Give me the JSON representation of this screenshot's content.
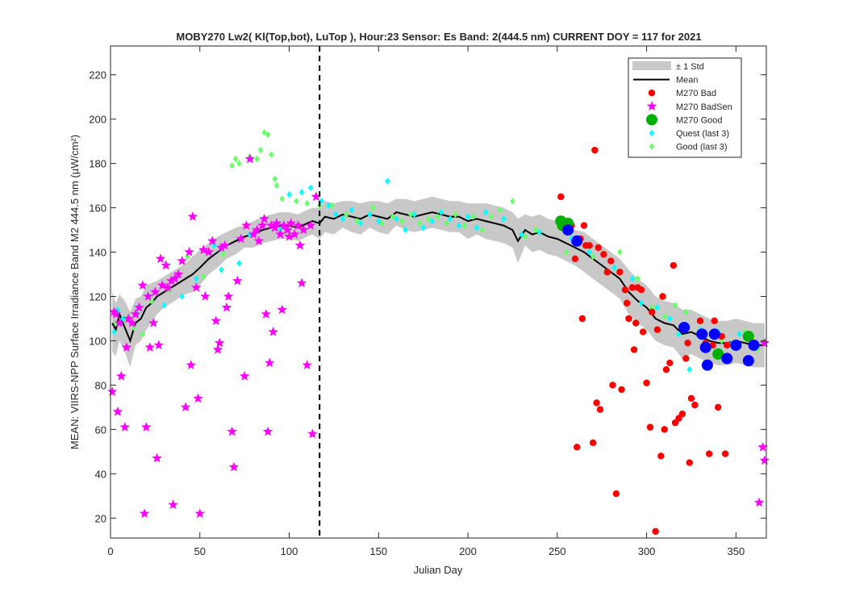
{
  "chart_data": {
    "type": "scatter",
    "title": "MOBY270   Lw2( Kl(Top,bot), LuTop ),   Hour:23 Sensor: Es Band: 2(444.5 nm)   CURRENT DOY = 117 for 2021",
    "xlabel": "Julian Day",
    "ylabel": "MEAN: VIIRS-NPP Surface Irradiance Band M2 444.5 nm (µW/cm²)",
    "xlim": [
      0,
      367
    ],
    "ylim": [
      11,
      233
    ],
    "xticks": [
      0,
      50,
      100,
      150,
      200,
      250,
      300,
      350
    ],
    "yticks": [
      20,
      40,
      60,
      80,
      100,
      120,
      140,
      160,
      180,
      200,
      220
    ],
    "grid": false,
    "legend_position": "top-right",
    "current_doy": 117,
    "colors": {
      "std_band": "#c8c8c8",
      "mean": "#000000",
      "bad": "#ff0000",
      "badsen": "#ff00ff",
      "good": "#00b000",
      "quest": "#00ffff",
      "goodlast3": "#66ff66",
      "blue": "#0000ff"
    },
    "legend": [
      {
        "key": "std",
        "label": "± 1 Std"
      },
      {
        "key": "mean",
        "label": "Mean"
      },
      {
        "key": "bad",
        "label": "M270 Bad"
      },
      {
        "key": "badsen",
        "label": "M270 BadSen"
      },
      {
        "key": "good",
        "label": "M270 Good"
      },
      {
        "key": "quest",
        "label": "Quest (last 3)"
      },
      {
        "key": "goodlast3",
        "label": "Good (last 3)"
      }
    ],
    "mean_x": [
      1,
      3,
      5,
      8,
      11,
      14,
      17,
      20,
      23,
      26,
      30,
      34,
      38,
      42,
      46,
      50,
      55,
      60,
      65,
      70,
      75,
      80,
      85,
      90,
      95,
      100,
      105,
      110,
      113,
      117,
      120,
      125,
      130,
      135,
      140,
      145,
      150,
      155,
      160,
      165,
      170,
      175,
      180,
      185,
      190,
      195,
      200,
      205,
      210,
      215,
      220,
      225,
      228,
      232,
      236,
      240,
      245,
      250,
      255,
      260,
      265,
      270,
      275,
      280,
      285,
      290,
      295,
      300,
      305,
      310,
      315,
      320,
      325,
      330,
      335,
      340,
      345,
      350,
      355,
      360,
      366
    ],
    "mean_y": [
      108,
      105,
      112,
      106,
      100,
      108,
      110,
      115,
      117,
      120,
      122,
      124,
      126,
      128,
      130,
      133,
      137,
      140,
      143,
      145,
      147,
      148,
      150,
      151,
      152,
      152,
      151,
      153,
      154,
      153,
      156,
      155,
      157,
      156,
      155,
      157,
      156,
      155,
      158,
      157,
      156,
      157,
      158,
      157,
      156,
      156,
      154,
      155,
      154,
      153,
      152,
      150,
      145,
      150,
      148,
      149,
      147,
      146,
      144,
      142,
      140,
      137,
      134,
      131,
      128,
      122,
      118,
      115,
      110,
      108,
      107,
      103,
      104,
      102,
      100,
      99,
      99,
      100,
      99,
      98,
      98
    ],
    "std_upper": [
      122,
      117,
      121,
      118,
      113,
      119,
      120,
      125,
      126,
      127,
      129,
      131,
      133,
      135,
      138,
      141,
      144,
      147,
      149,
      151,
      152,
      154,
      156,
      157,
      158,
      158,
      157,
      159,
      160,
      160,
      163,
      162,
      163,
      163,
      162,
      163,
      163,
      162,
      164,
      164,
      163,
      164,
      165,
      164,
      163,
      163,
      162,
      162,
      162,
      161,
      160,
      158,
      155,
      157,
      156,
      157,
      155,
      154,
      152,
      150,
      149,
      146,
      143,
      140,
      137,
      132,
      128,
      125,
      120,
      118,
      117,
      114,
      114,
      112,
      110,
      109,
      109,
      110,
      109,
      108,
      108
    ],
    "std_lower": [
      95,
      93,
      100,
      95,
      88,
      98,
      100,
      105,
      108,
      112,
      115,
      117,
      119,
      121,
      122,
      125,
      130,
      133,
      137,
      139,
      142,
      142,
      144,
      145,
      146,
      146,
      145,
      147,
      148,
      146,
      149,
      148,
      151,
      149,
      148,
      151,
      149,
      148,
      152,
      150,
      149,
      150,
      151,
      150,
      149,
      149,
      146,
      148,
      146,
      145,
      144,
      142,
      135,
      143,
      140,
      141,
      139,
      138,
      136,
      134,
      131,
      128,
      125,
      122,
      119,
      112,
      108,
      105,
      100,
      98,
      97,
      92,
      94,
      92,
      90,
      89,
      89,
      90,
      89,
      88,
      88
    ],
    "series_badsen": [
      [
        1,
        77
      ],
      [
        2,
        113
      ],
      [
        3,
        112
      ],
      [
        4,
        68
      ],
      [
        5,
        108
      ],
      [
        6,
        84
      ],
      [
        8,
        61
      ],
      [
        9,
        97
      ],
      [
        10,
        110
      ],
      [
        12,
        108
      ],
      [
        14,
        112
      ],
      [
        16,
        115
      ],
      [
        18,
        125
      ],
      [
        19,
        22
      ],
      [
        20,
        61
      ],
      [
        21,
        120
      ],
      [
        22,
        97
      ],
      [
        24,
        108
      ],
      [
        25,
        122
      ],
      [
        26,
        47
      ],
      [
        27,
        98
      ],
      [
        28,
        137
      ],
      [
        29,
        125
      ],
      [
        31,
        134
      ],
      [
        32,
        124
      ],
      [
        34,
        127
      ],
      [
        35,
        26
      ],
      [
        36,
        128
      ],
      [
        38,
        130
      ],
      [
        40,
        136
      ],
      [
        42,
        70
      ],
      [
        44,
        140
      ],
      [
        45,
        89
      ],
      [
        46,
        156
      ],
      [
        48,
        124
      ],
      [
        49,
        74
      ],
      [
        50,
        22
      ],
      [
        52,
        141
      ],
      [
        53,
        120
      ],
      [
        55,
        140
      ],
      [
        57,
        145
      ],
      [
        59,
        109
      ],
      [
        60,
        96
      ],
      [
        61,
        99
      ],
      [
        62,
        142
      ],
      [
        64,
        143
      ],
      [
        65,
        115
      ],
      [
        66,
        120
      ],
      [
        68,
        59
      ],
      [
        69,
        43
      ],
      [
        71,
        127
      ],
      [
        73,
        146
      ],
      [
        75,
        84
      ],
      [
        76,
        152
      ],
      [
        78,
        182
      ],
      [
        80,
        148
      ],
      [
        82,
        150
      ],
      [
        83,
        145
      ],
      [
        85,
        152
      ],
      [
        86,
        155
      ],
      [
        87,
        112
      ],
      [
        88,
        59
      ],
      [
        89,
        90
      ],
      [
        90,
        152
      ],
      [
        91,
        104
      ],
      [
        92,
        151
      ],
      [
        93,
        153
      ],
      [
        95,
        148
      ],
      [
        96,
        114
      ],
      [
        97,
        152
      ],
      [
        99,
        150
      ],
      [
        100,
        147
      ],
      [
        101,
        153
      ],
      [
        103,
        148
      ],
      [
        105,
        152
      ],
      [
        106,
        143
      ],
      [
        107,
        126
      ],
      [
        108,
        150
      ],
      [
        110,
        89
      ],
      [
        112,
        152
      ],
      [
        113,
        58
      ],
      [
        115,
        165
      ],
      [
        363,
        27
      ],
      [
        365,
        52
      ],
      [
        366,
        46
      ],
      [
        366,
        99
      ]
    ],
    "series_bad": [
      [
        252,
        165
      ],
      [
        256,
        154
      ],
      [
        258,
        152
      ],
      [
        260,
        137
      ],
      [
        261,
        52
      ],
      [
        263,
        146
      ],
      [
        264,
        110
      ],
      [
        265,
        152
      ],
      [
        266,
        143
      ],
      [
        268,
        143
      ],
      [
        270,
        54
      ],
      [
        271,
        186
      ],
      [
        272,
        72
      ],
      [
        273,
        142
      ],
      [
        274,
        69
      ],
      [
        276,
        139
      ],
      [
        278,
        131
      ],
      [
        280,
        136
      ],
      [
        281,
        80
      ],
      [
        283,
        31
      ],
      [
        285,
        131
      ],
      [
        286,
        78
      ],
      [
        288,
        123
      ],
      [
        289,
        117
      ],
      [
        290,
        110
      ],
      [
        292,
        124
      ],
      [
        293,
        96
      ],
      [
        294,
        108
      ],
      [
        295,
        124
      ],
      [
        297,
        123
      ],
      [
        298,
        104
      ],
      [
        300,
        81
      ],
      [
        302,
        61
      ],
      [
        303,
        113
      ],
      [
        305,
        14
      ],
      [
        306,
        105
      ],
      [
        308,
        48
      ],
      [
        309,
        120
      ],
      [
        310,
        60
      ],
      [
        311,
        87
      ],
      [
        313,
        90
      ],
      [
        315,
        134
      ],
      [
        316,
        63
      ],
      [
        318,
        65
      ],
      [
        320,
        67
      ],
      [
        322,
        92
      ],
      [
        323,
        99
      ],
      [
        324,
        45
      ],
      [
        325,
        74
      ],
      [
        327,
        71
      ],
      [
        330,
        109
      ],
      [
        333,
        99
      ],
      [
        335,
        49
      ],
      [
        337,
        98
      ],
      [
        338,
        109
      ],
      [
        340,
        70
      ],
      [
        342,
        102
      ],
      [
        344,
        49
      ],
      [
        345,
        98
      ]
    ],
    "series_good": [
      [
        252,
        154
      ],
      [
        253,
        152
      ],
      [
        256,
        153
      ],
      [
        340,
        94
      ],
      [
        357,
        102
      ]
    ],
    "series_blue": [
      [
        256,
        150
      ],
      [
        261,
        145
      ],
      [
        321,
        106
      ],
      [
        331,
        103
      ],
      [
        333,
        97
      ],
      [
        334,
        89
      ],
      [
        338,
        103
      ],
      [
        345,
        92
      ],
      [
        350,
        98
      ],
      [
        357,
        91
      ],
      [
        360,
        98
      ]
    ],
    "series_quest": [
      [
        2,
        104
      ],
      [
        4,
        114
      ],
      [
        7,
        110
      ],
      [
        15,
        112
      ],
      [
        30,
        116
      ],
      [
        40,
        120
      ],
      [
        48,
        128
      ],
      [
        58,
        143
      ],
      [
        62,
        132
      ],
      [
        72,
        135
      ],
      [
        78,
        148
      ],
      [
        95,
        150
      ],
      [
        100,
        166
      ],
      [
        107,
        167
      ],
      [
        112,
        169
      ],
      [
        118,
        163
      ],
      [
        122,
        161
      ],
      [
        126,
        157
      ],
      [
        130,
        155
      ],
      [
        135,
        159
      ],
      [
        140,
        153
      ],
      [
        145,
        157
      ],
      [
        150,
        154
      ],
      [
        155,
        172
      ],
      [
        160,
        155
      ],
      [
        165,
        150
      ],
      [
        170,
        157
      ],
      [
        175,
        151
      ],
      [
        180,
        154
      ],
      [
        185,
        158
      ],
      [
        190,
        155
      ],
      [
        195,
        152
      ],
      [
        200,
        156
      ],
      [
        205,
        151
      ],
      [
        210,
        158
      ],
      [
        220,
        155
      ],
      [
        230,
        148
      ],
      [
        240,
        149
      ],
      [
        253,
        152
      ],
      [
        258,
        146
      ],
      [
        262,
        144
      ],
      [
        268,
        140
      ],
      [
        282,
        133
      ],
      [
        292,
        128
      ],
      [
        297,
        117
      ],
      [
        306,
        115
      ],
      [
        313,
        110
      ],
      [
        318,
        103
      ],
      [
        324,
        87
      ],
      [
        330,
        105
      ],
      [
        340,
        104
      ],
      [
        346,
        98
      ],
      [
        352,
        103
      ],
      [
        358,
        101
      ]
    ],
    "series_goodlast3": [
      [
        3,
        108
      ],
      [
        8,
        110
      ],
      [
        13,
        106
      ],
      [
        18,
        103
      ],
      [
        23,
        118
      ],
      [
        33,
        123
      ],
      [
        43,
        138
      ],
      [
        52,
        129
      ],
      [
        63,
        139
      ],
      [
        68,
        179
      ],
      [
        70,
        182
      ],
      [
        72,
        180
      ],
      [
        78,
        183
      ],
      [
        82,
        182
      ],
      [
        84,
        186
      ],
      [
        86,
        194
      ],
      [
        88,
        193
      ],
      [
        90,
        184
      ],
      [
        92,
        173
      ],
      [
        93,
        170
      ],
      [
        96,
        164
      ],
      [
        104,
        163
      ],
      [
        110,
        162
      ],
      [
        117,
        161
      ],
      [
        124,
        161
      ],
      [
        132,
        157
      ],
      [
        138,
        154
      ],
      [
        147,
        160
      ],
      [
        152,
        153
      ],
      [
        158,
        156
      ],
      [
        163,
        154
      ],
      [
        168,
        157
      ],
      [
        173,
        153
      ],
      [
        178,
        155
      ],
      [
        183,
        156
      ],
      [
        188,
        153
      ],
      [
        193,
        157
      ],
      [
        198,
        152
      ],
      [
        203,
        156
      ],
      [
        208,
        150
      ],
      [
        213,
        156
      ],
      [
        218,
        159
      ],
      [
        225,
        163
      ],
      [
        232,
        147
      ],
      [
        238,
        150
      ],
      [
        255,
        140
      ],
      [
        270,
        138
      ],
      [
        285,
        140
      ],
      [
        295,
        128
      ],
      [
        303,
        115
      ],
      [
        310,
        111
      ],
      [
        316,
        116
      ],
      [
        322,
        113
      ],
      [
        330,
        103
      ],
      [
        336,
        97
      ],
      [
        342,
        100
      ],
      [
        348,
        99
      ],
      [
        355,
        104
      ],
      [
        362,
        96
      ]
    ]
  }
}
